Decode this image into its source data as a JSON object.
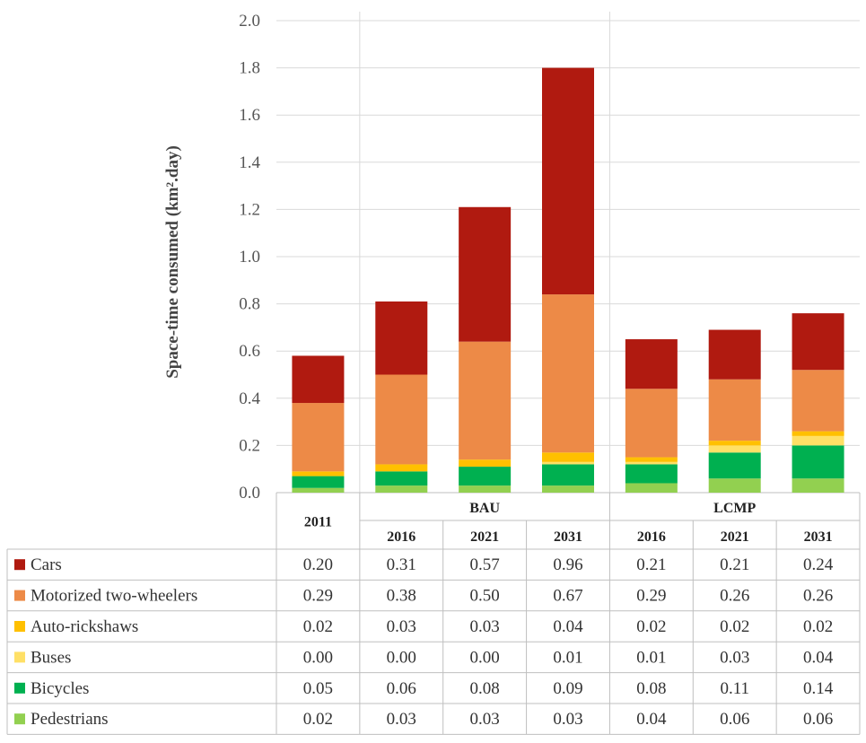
{
  "chart_data": {
    "type": "bar",
    "stacked": true,
    "ylabel": "Space-time consumed (km².day)",
    "ylim": [
      0,
      2.0
    ],
    "yticks": [
      "0.0",
      "0.2",
      "0.4",
      "0.6",
      "0.8",
      "1.0",
      "1.2",
      "1.4",
      "1.6",
      "1.8",
      "2.0"
    ],
    "grid": true,
    "legend": "data-table",
    "groups": [
      {
        "label": "",
        "categories": [
          "2011"
        ]
      },
      {
        "label": "BAU",
        "categories": [
          "2016",
          "2021",
          "2031"
        ]
      },
      {
        "label": "LCMP",
        "categories": [
          "2016",
          "2021",
          "2031"
        ]
      }
    ],
    "categories": [
      "2011",
      "2016",
      "2021",
      "2031",
      "2016",
      "2021",
      "2031"
    ],
    "series": [
      {
        "name": "Pedestrians",
        "color": "#92d050",
        "values": [
          0.02,
          0.03,
          0.03,
          0.03,
          0.04,
          0.06,
          0.06
        ],
        "labels": [
          "0.02",
          "0.03",
          "0.03",
          "0.03",
          "0.04",
          "0.06",
          "0.06"
        ]
      },
      {
        "name": "Bicycles",
        "color": "#00b050",
        "values": [
          0.05,
          0.06,
          0.08,
          0.09,
          0.08,
          0.11,
          0.14
        ],
        "labels": [
          "0.05",
          "0.06",
          "0.08",
          "0.09",
          "0.08",
          "0.11",
          "0.14"
        ]
      },
      {
        "name": "Buses",
        "color": "#ffe066",
        "values": [
          0.0,
          0.0,
          0.0,
          0.01,
          0.01,
          0.03,
          0.04
        ],
        "labels": [
          "0.00",
          "0.00",
          "0.00",
          "0.01",
          "0.01",
          "0.03",
          "0.04"
        ]
      },
      {
        "name": "Auto-rickshaws",
        "color": "#ffc000",
        "values": [
          0.02,
          0.03,
          0.03,
          0.04,
          0.02,
          0.02,
          0.02
        ],
        "labels": [
          "0.02",
          "0.03",
          "0.03",
          "0.04",
          "0.02",
          "0.02",
          "0.02"
        ]
      },
      {
        "name": "Motorized two-wheelers",
        "color": "#ed8a47",
        "values": [
          0.29,
          0.38,
          0.5,
          0.67,
          0.29,
          0.26,
          0.26
        ],
        "labels": [
          "0.29",
          "0.38",
          "0.50",
          "0.67",
          "0.29",
          "0.26",
          "0.26"
        ]
      },
      {
        "name": "Cars",
        "color": "#b01a10",
        "values": [
          0.2,
          0.31,
          0.57,
          0.96,
          0.21,
          0.21,
          0.24
        ],
        "labels": [
          "0.20",
          "0.31",
          "0.57",
          "0.96",
          "0.21",
          "0.21",
          "0.24"
        ]
      }
    ],
    "table_row_order": [
      "Cars",
      "Motorized two-wheelers",
      "Auto-rickshaws",
      "Buses",
      "Bicycles",
      "Pedestrians"
    ]
  }
}
